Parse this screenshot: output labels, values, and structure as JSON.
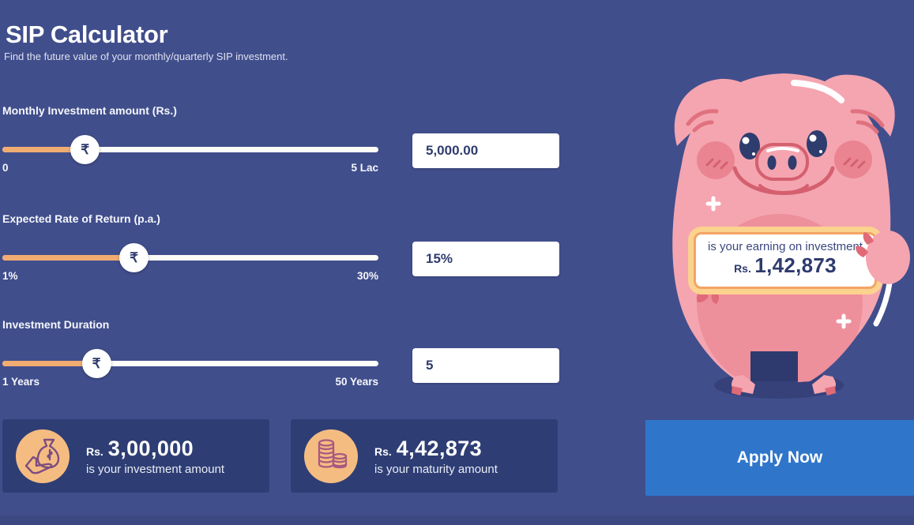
{
  "header": {
    "title": "SIP Calculator",
    "subtitle": "Find the future value of your monthly/quarterly SIP investment."
  },
  "rupee_symbol": "₹",
  "sliders": [
    {
      "label": "Monthly Investment amount (Rs.)",
      "min_label": "0",
      "max_label": "5 Lac",
      "value": "5,000.00",
      "fill_percent": 22
    },
    {
      "label": "Expected Rate of Return (p.a.)",
      "min_label": "1%",
      "max_label": "30%",
      "value": "15%",
      "fill_percent": 35
    },
    {
      "label": "Investment Duration",
      "min_label": "1 Years",
      "max_label": "50 Years",
      "value": "5",
      "fill_percent": 25
    }
  ],
  "results": [
    {
      "icon": "money-bag-in-hand-icon",
      "currency_label": "Rs.",
      "amount": "3,00,000",
      "caption": "is your investment amount"
    },
    {
      "icon": "coin-stacks-icon",
      "currency_label": "Rs.",
      "amount": "4,42,873",
      "caption": "is your maturity amount"
    }
  ],
  "earnings_bubble": {
    "line1": "is your earning on investment",
    "currency_label": "Rs.",
    "amount": "1,42,873"
  },
  "apply_button_label": "Apply Now",
  "colors": {
    "background": "#414e8c",
    "card": "#2e3e74",
    "accent_orange": "#f1ac71",
    "icon_circle_orange": "#f5bc82",
    "apply_blue": "#2f76cb",
    "text_navy": "#2f3c6e",
    "bubble_border": "#f3a466",
    "bubble_glow": "#fbd28e",
    "pig_pink": "#f4a5b0",
    "pig_dark_pink": "#e06a77"
  }
}
